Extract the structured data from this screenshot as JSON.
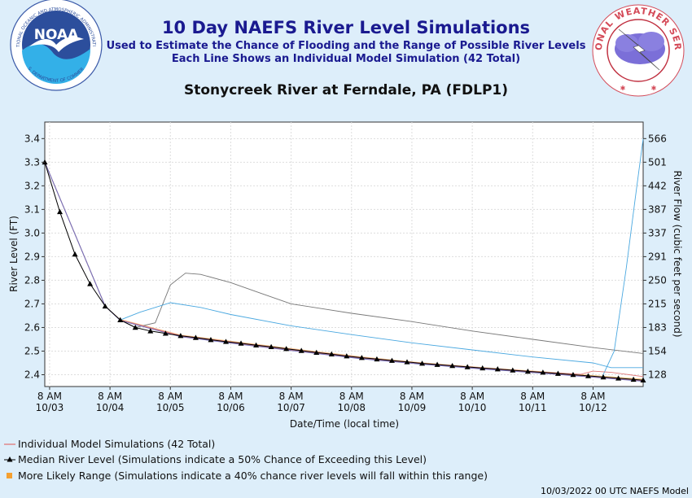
{
  "header": {
    "title": "10 Day NAEFS River Level Simulations",
    "subtitle1": "Used to Estimate the Chance of Flooding and the Range of Possible River Levels",
    "subtitle2": "Each Line Shows an Individual Model Simulation (42 Total)",
    "station": "Stonycreek River at Ferndale, PA (FDLP1)"
  },
  "footer": "10/03/2022 00 UTC NAEFS Model",
  "logos": {
    "noaa_text": "NOAA",
    "noaa_ring": "NATIONAL OCEANIC AND ATMOSPHERIC ADMINISTRATION",
    "noaa_ring_bottom": "U.S. DEPARTMENT OF COMMERCE",
    "nws_ring": "NATIONAL WEATHER SERVICE"
  },
  "colors": {
    "background": "#ddeefa",
    "title": "#1a1a90",
    "individual": "#e07a7a",
    "median": "#000000",
    "likely_range": "#f5a030",
    "gray_member": "#777777",
    "blue_member": "#4aa8e0"
  },
  "chart_data": {
    "type": "line",
    "xlabel": "Date/Time (local time)",
    "ylabel": "River Level (FT)",
    "ylabel_right": "River Flow (cubic feet per second)",
    "ylim": [
      2.35,
      3.47
    ],
    "xlim_days": [
      -0.08,
      9.83
    ],
    "x_tick_labels": [
      {
        "day": 0,
        "time": "8 AM",
        "date": "10/03"
      },
      {
        "day": 1,
        "time": "8 AM",
        "date": "10/04"
      },
      {
        "day": 2,
        "time": "8 AM",
        "date": "10/05"
      },
      {
        "day": 3,
        "time": "8 AM",
        "date": "10/06"
      },
      {
        "day": 4,
        "time": "8 AM",
        "date": "10/07"
      },
      {
        "day": 5,
        "time": "8 AM",
        "date": "10/08"
      },
      {
        "day": 6,
        "time": "8 AM",
        "date": "10/09"
      },
      {
        "day": 7,
        "time": "8 AM",
        "date": "10/10"
      },
      {
        "day": 8,
        "time": "8 AM",
        "date": "10/11"
      },
      {
        "day": 9,
        "time": "8 AM",
        "date": "10/12"
      }
    ],
    "y_ticks": [
      "2.4",
      "2.5",
      "2.6",
      "2.7",
      "2.8",
      "2.9",
      "3.0",
      "3.1",
      "3.2",
      "3.3",
      "3.4"
    ],
    "y_ticks_right": [
      {
        "stage": 2.4,
        "label": "128"
      },
      {
        "stage": 2.5,
        "label": "154"
      },
      {
        "stage": 2.6,
        "label": "183"
      },
      {
        "stage": 2.7,
        "label": "215"
      },
      {
        "stage": 2.8,
        "label": "250"
      },
      {
        "stage": 2.9,
        "label": "291"
      },
      {
        "stage": 3.0,
        "label": "337"
      },
      {
        "stage": 3.1,
        "label": "387"
      },
      {
        "stage": 3.2,
        "label": "442"
      },
      {
        "stage": 3.3,
        "label": "501"
      },
      {
        "stage": 3.4,
        "label": "566"
      }
    ],
    "legend": [
      "Individual Model Simulations (42 Total)",
      "Median River Level (Simulations indicate a 50% Chance of Exceeding this Level)",
      "More Likely Range (Simulations indicate a 40% chance river levels will fall within this range)"
    ],
    "median": {
      "x": [
        -0.08,
        0.17,
        0.42,
        0.67,
        0.92,
        1.17,
        1.42,
        1.67,
        1.92,
        2.17,
        2.42,
        2.67,
        2.92,
        3.17,
        3.42,
        3.67,
        3.92,
        4.17,
        4.42,
        4.67,
        4.92,
        5.17,
        5.42,
        5.67,
        5.92,
        6.17,
        6.42,
        6.67,
        6.92,
        7.17,
        7.42,
        7.67,
        7.92,
        8.17,
        8.42,
        8.67,
        8.92,
        9.17,
        9.42,
        9.67,
        9.83
      ],
      "y": [
        3.3,
        3.09,
        2.91,
        2.785,
        2.69,
        2.632,
        2.6,
        2.585,
        2.575,
        2.565,
        2.557,
        2.548,
        2.54,
        2.533,
        2.525,
        2.518,
        2.51,
        2.502,
        2.494,
        2.487,
        2.479,
        2.472,
        2.466,
        2.46,
        2.454,
        2.448,
        2.443,
        2.438,
        2.433,
        2.428,
        2.424,
        2.419,
        2.414,
        2.41,
        2.405,
        2.4,
        2.395,
        2.39,
        2.385,
        2.38,
        2.377
      ]
    },
    "likely_range": {
      "x": [
        -0.08,
        0.92,
        1.17,
        2.17,
        3.17,
        4.17,
        5.17,
        6.17,
        7.17,
        8.17,
        9.17,
        9.83
      ],
      "upper": [
        3.3,
        2.69,
        2.636,
        2.57,
        2.538,
        2.507,
        2.477,
        2.452,
        2.432,
        2.414,
        2.395,
        2.383
      ],
      "lower": [
        3.3,
        2.69,
        2.628,
        2.56,
        2.528,
        2.497,
        2.467,
        2.444,
        2.424,
        2.406,
        2.386,
        2.372
      ]
    },
    "series": [
      {
        "color": "#777777",
        "x": [
          -0.08,
          0.92,
          1.17,
          1.42,
          1.75,
          2.0,
          2.25,
          2.5,
          3.0,
          3.5,
          4.0,
          5.0,
          6.0,
          7.0,
          8.0,
          9.0,
          9.83
        ],
        "y": [
          3.3,
          2.69,
          2.632,
          2.6,
          2.62,
          2.78,
          2.83,
          2.825,
          2.79,
          2.745,
          2.7,
          2.66,
          2.625,
          2.585,
          2.55,
          2.515,
          2.49
        ]
      },
      {
        "color": "#4aa8e0",
        "x": [
          -0.08,
          0.92,
          1.17,
          1.5,
          2.0,
          2.5,
          3.0,
          4.0,
          5.0,
          6.0,
          7.0,
          8.0,
          9.0,
          9.3,
          9.55,
          9.83
        ],
        "y": [
          3.3,
          2.69,
          2.632,
          2.665,
          2.705,
          2.685,
          2.655,
          2.607,
          2.57,
          2.535,
          2.505,
          2.475,
          2.45,
          2.43,
          2.43,
          2.43
        ]
      },
      {
        "color": "#4aa8e0",
        "x": [
          -0.08,
          0.92,
          1.17,
          2.17,
          3.17,
          4.17,
          5.17,
          6.17,
          7.17,
          8.17,
          9.0,
          9.15,
          9.35,
          9.55,
          9.7,
          9.83
        ],
        "y": [
          3.3,
          2.69,
          2.632,
          2.565,
          2.533,
          2.502,
          2.472,
          2.448,
          2.428,
          2.41,
          2.392,
          2.39,
          2.5,
          2.85,
          3.15,
          3.4
        ]
      },
      {
        "color": "#e07a7a",
        "x": [
          -0.08,
          0.92,
          1.17,
          2.17,
          3.17,
          4.17,
          5.17,
          6.17,
          7.17,
          8.17,
          8.8,
          9.0,
          9.3,
          9.6,
          9.83
        ],
        "y": [
          3.3,
          2.69,
          2.632,
          2.566,
          2.534,
          2.503,
          2.473,
          2.449,
          2.429,
          2.411,
          2.402,
          2.415,
          2.41,
          2.4,
          2.392
        ]
      },
      {
        "color": "#e07a7a",
        "x": [
          -0.08,
          0.92,
          1.17,
          2.17,
          3.17,
          4.17,
          5.17,
          6.17,
          7.17,
          8.17,
          9.17,
          9.83
        ],
        "y": [
          3.3,
          2.69,
          2.632,
          2.563,
          2.53,
          2.499,
          2.469,
          2.446,
          2.426,
          2.408,
          2.388,
          2.374
        ]
      },
      {
        "color": "#7070c0",
        "x": [
          -0.08,
          0.92,
          1.17,
          2.17,
          3.17,
          4.17,
          5.17,
          6.17,
          7.17,
          8.17,
          9.17,
          9.83
        ],
        "y": [
          3.3,
          2.69,
          2.63,
          2.561,
          2.528,
          2.497,
          2.467,
          2.444,
          2.424,
          2.406,
          2.386,
          2.372
        ]
      }
    ]
  }
}
